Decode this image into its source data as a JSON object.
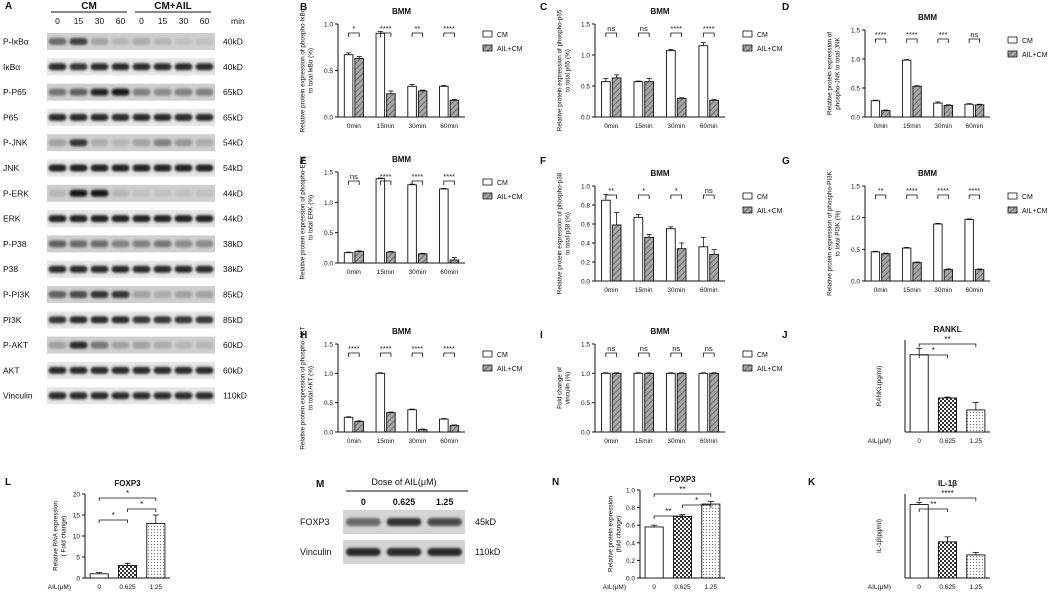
{
  "legend_labels": [
    "CM",
    "AIL+CM"
  ],
  "blotA": {
    "panel": "A",
    "groups": [
      "CM",
      "CM+AIL"
    ],
    "times": [
      "0",
      "15",
      "30",
      "60",
      "0",
      "15",
      "30",
      "60"
    ],
    "time_unit": "min",
    "rows": [
      {
        "label": "P-IκBα",
        "kd": "40kD",
        "phospho": true,
        "intensities": [
          0.55,
          0.75,
          0.3,
          0.2,
          0.25,
          0.2,
          0.15,
          0.15
        ]
      },
      {
        "label": "IκBα",
        "kd": "40kD",
        "phospho": false,
        "intensities": [
          0.85,
          0.8,
          0.85,
          0.85,
          0.85,
          0.85,
          0.85,
          0.85
        ]
      },
      {
        "label": "P-P65",
        "kd": "65kD",
        "phospho": true,
        "intensities": [
          0.5,
          0.6,
          0.9,
          0.95,
          0.45,
          0.4,
          0.45,
          0.45
        ]
      },
      {
        "label": "P65",
        "kd": "65kD",
        "phospho": false,
        "intensities": [
          0.85,
          0.85,
          0.85,
          0.85,
          0.85,
          0.85,
          0.85,
          0.85
        ]
      },
      {
        "label": "P-JNK",
        "kd": "54kD",
        "phospho": true,
        "intensities": [
          0.3,
          0.8,
          0.25,
          0.2,
          0.3,
          0.45,
          0.35,
          0.25
        ]
      },
      {
        "label": "JNK",
        "kd": "54kD",
        "phospho": false,
        "intensities": [
          0.9,
          0.9,
          0.9,
          0.9,
          0.9,
          0.9,
          0.9,
          0.9
        ]
      },
      {
        "label": "P-ERK",
        "kd": "44kD",
        "phospho": true,
        "intensities": [
          0.2,
          0.95,
          0.95,
          0.2,
          0.15,
          0.15,
          0.15,
          0.15
        ]
      },
      {
        "label": "ERK",
        "kd": "44kD",
        "phospho": false,
        "intensities": [
          0.9,
          0.9,
          0.9,
          0.9,
          0.9,
          0.9,
          0.9,
          0.9
        ]
      },
      {
        "label": "P-P38",
        "kd": "38kD",
        "phospho": true,
        "intensities": [
          0.6,
          0.55,
          0.55,
          0.45,
          0.45,
          0.5,
          0.4,
          0.4
        ]
      },
      {
        "label": "P38",
        "kd": "38kD",
        "phospho": false,
        "intensities": [
          0.85,
          0.85,
          0.85,
          0.85,
          0.85,
          0.85,
          0.85,
          0.85
        ]
      },
      {
        "label": "P-PI3K",
        "kd": "85kD",
        "phospho": true,
        "intensities": [
          0.6,
          0.7,
          0.8,
          0.8,
          0.3,
          0.25,
          0.3,
          0.3
        ]
      },
      {
        "label": "PI3K",
        "kd": "85kD",
        "phospho": false,
        "intensities": [
          0.8,
          0.85,
          0.85,
          0.85,
          0.8,
          0.8,
          0.8,
          0.8
        ]
      },
      {
        "label": "P-AKT",
        "kd": "60kD",
        "phospho": true,
        "intensities": [
          0.3,
          0.85,
          0.5,
          0.3,
          0.3,
          0.25,
          0.2,
          0.2
        ]
      },
      {
        "label": "AKT",
        "kd": "60kD",
        "phospho": false,
        "intensities": [
          0.85,
          0.85,
          0.85,
          0.85,
          0.85,
          0.85,
          0.85,
          0.85
        ]
      },
      {
        "label": "Vinculin",
        "kd": "110kD",
        "phospho": false,
        "intensities": [
          0.85,
          0.85,
          0.85,
          0.85,
          0.85,
          0.85,
          0.85,
          0.85
        ]
      }
    ]
  },
  "blotM": {
    "panel": "M",
    "title": "Dose of AIL(μM)",
    "doses": [
      "0",
      "0.625",
      "1.25"
    ],
    "rows": [
      {
        "label": "FOXP3",
        "kd": "45kD",
        "intensities": [
          0.55,
          0.8,
          0.7
        ]
      },
      {
        "label": "Vinculin",
        "kd": "110kD",
        "intensities": [
          0.85,
          0.85,
          0.85
        ]
      }
    ]
  },
  "chart_data": [
    {
      "id": "B",
      "panel": "B",
      "type": "bar",
      "title": "BMM",
      "ylabel": "Relative protein expression of phospho-IκBα to total IκBα (%)",
      "categories": [
        "0min",
        "15min",
        "30min",
        "60min"
      ],
      "ylim": [
        0,
        1.0
      ],
      "yticks": [
        "0.0",
        "0.5",
        "1.0"
      ],
      "series": [
        {
          "name": "CM",
          "values": [
            0.67,
            0.9,
            0.33,
            0.33
          ],
          "errors": [
            0.02,
            0.02,
            0.02,
            0.01
          ]
        },
        {
          "name": "AIL+CM",
          "values": [
            0.63,
            0.25,
            0.28,
            0.18
          ],
          "errors": [
            0.02,
            0.03,
            0.01,
            0.01
          ]
        }
      ],
      "significance": [
        "*",
        "****",
        "**",
        "****"
      ]
    },
    {
      "id": "C",
      "panel": "C",
      "type": "bar",
      "title": "BMM",
      "ylabel": "Relative protein expression of phospho-p65 to total p65 (%)",
      "categories": [
        "0min",
        "15min",
        "30min",
        "60min"
      ],
      "ylim": [
        0,
        1.5
      ],
      "yticks": [
        "0.0",
        "0.5",
        "1.0",
        "1.5"
      ],
      "series": [
        {
          "name": "CM",
          "values": [
            0.57,
            0.57,
            1.07,
            1.15
          ],
          "errors": [
            0.05,
            0.01,
            0.02,
            0.05
          ]
        },
        {
          "name": "AIL+CM",
          "values": [
            0.63,
            0.57,
            0.3,
            0.27
          ],
          "errors": [
            0.05,
            0.05,
            0.01,
            0.01
          ]
        }
      ],
      "significance": [
        "ns",
        "ns",
        "****",
        "****"
      ]
    },
    {
      "id": "D",
      "panel": "D",
      "type": "bar",
      "title": "BMM",
      "ylabel": "Relative protein expression of phospho-JNK to total JNK",
      "categories": [
        "0min",
        "15min",
        "30min",
        "60min"
      ],
      "ylim": [
        0,
        1.5
      ],
      "yticks": [
        "0.0",
        "0.5",
        "1.0",
        "1.5"
      ],
      "series": [
        {
          "name": "CM",
          "values": [
            0.28,
            0.98,
            0.24,
            0.22
          ],
          "errors": [
            0.01,
            0.01,
            0.02,
            0.01
          ]
        },
        {
          "name": "AIL+CM",
          "values": [
            0.11,
            0.53,
            0.2,
            0.21
          ],
          "errors": [
            0.01,
            0.01,
            0.01,
            0.01
          ]
        }
      ],
      "significance": [
        "****",
        "****",
        "***",
        "ns"
      ]
    },
    {
      "id": "E",
      "panel": "E",
      "type": "bar",
      "title": "BMM",
      "ylabel": "Relative protein expression of phospho-ERK to total ERK (%)",
      "categories": [
        "0min",
        "15min",
        "30min",
        "60min"
      ],
      "ylim": [
        0,
        1.5
      ],
      "yticks": [
        "0.0",
        "0.5",
        "1.0",
        "1.5"
      ],
      "series": [
        {
          "name": "CM",
          "values": [
            0.17,
            1.39,
            1.29,
            1.22
          ],
          "errors": [
            0.01,
            0.01,
            0.01,
            0.01
          ]
        },
        {
          "name": "AIL+CM",
          "values": [
            0.19,
            0.18,
            0.15,
            0.05
          ],
          "errors": [
            0.01,
            0.01,
            0.01,
            0.04
          ]
        }
      ],
      "significance": [
        "ns",
        "****",
        "****",
        "****"
      ]
    },
    {
      "id": "F",
      "panel": "F",
      "type": "bar",
      "title": "BMM",
      "ylabel": "Relative protein expression of phospho-p38 to total p38 (%)",
      "categories": [
        "0min",
        "15min",
        "30min",
        "60min"
      ],
      "ylim": [
        0,
        1.0
      ],
      "yticks": [
        "0.0",
        "0.2",
        "0.4",
        "0.6",
        "0.8",
        "1.0"
      ],
      "series": [
        {
          "name": "CM",
          "values": [
            0.85,
            0.67,
            0.55,
            0.36
          ],
          "errors": [
            0.06,
            0.03,
            0.02,
            0.1
          ]
        },
        {
          "name": "AIL+CM",
          "values": [
            0.59,
            0.46,
            0.34,
            0.28
          ],
          "errors": [
            0.13,
            0.03,
            0.06,
            0.05
          ]
        }
      ],
      "significance": [
        "**",
        "*",
        "*",
        "ns"
      ]
    },
    {
      "id": "G",
      "panel": "G",
      "type": "bar",
      "title": "BMM",
      "ylabel": "Relative protein expression of phospho-PI3K to total PI3K (%)",
      "categories": [
        "0min",
        "15min",
        "30min",
        "60min"
      ],
      "ylim": [
        0,
        1.5
      ],
      "yticks": [
        "0.0",
        "0.5",
        "1.0",
        "1.5"
      ],
      "series": [
        {
          "name": "CM",
          "values": [
            0.46,
            0.52,
            0.9,
            0.97
          ],
          "errors": [
            0.01,
            0.01,
            0.01,
            0.01
          ]
        },
        {
          "name": "AIL+CM",
          "values": [
            0.43,
            0.29,
            0.18,
            0.18
          ],
          "errors": [
            0.01,
            0.01,
            0.01,
            0.01
          ]
        }
      ],
      "significance": [
        "**",
        "****",
        "****",
        "****"
      ]
    },
    {
      "id": "H",
      "panel": "H",
      "type": "bar",
      "title": "BMM",
      "ylabel": "Relative protein expression of phospho-AKT to total AKT (%)",
      "categories": [
        "0min",
        "15min",
        "30min",
        "60min"
      ],
      "ylim": [
        0,
        1.5
      ],
      "yticks": [
        "0.0",
        "0.5",
        "1.0",
        "1.5"
      ],
      "series": [
        {
          "name": "CM",
          "values": [
            0.25,
            1.0,
            0.38,
            0.22
          ],
          "errors": [
            0.01,
            0.01,
            0.01,
            0.01
          ]
        },
        {
          "name": "AIL+CM",
          "values": [
            0.18,
            0.33,
            0.04,
            0.11
          ],
          "errors": [
            0.01,
            0.01,
            0.01,
            0.01
          ]
        }
      ],
      "significance": [
        "****",
        "****",
        "****",
        "****"
      ]
    },
    {
      "id": "I",
      "panel": "I",
      "type": "bar",
      "title": "BMM",
      "ylabel": "Fold change of vinculin (%)",
      "categories": [
        "0min",
        "15min",
        "30min",
        "60min"
      ],
      "ylim": [
        0,
        1.5
      ],
      "yticks": [
        "0.0",
        "0.5",
        "1.0",
        "1.5"
      ],
      "series": [
        {
          "name": "CM",
          "values": [
            1.0,
            1.0,
            1.0,
            1.0
          ],
          "errors": [
            0.01,
            0.01,
            0.01,
            0.01
          ]
        },
        {
          "name": "AIL+CM",
          "values": [
            1.0,
            1.0,
            1.0,
            1.0
          ],
          "errors": [
            0.01,
            0.01,
            0.01,
            0.01
          ]
        }
      ],
      "significance": [
        "ns",
        "ns",
        "ns",
        "ns"
      ]
    },
    {
      "id": "J",
      "panel": "J",
      "type": "bar",
      "title": "RANKL",
      "ylabel": "RANKL(pg/ml)",
      "xprefix": "AIL(μM)",
      "categories": [
        "0",
        "0.625",
        "1.25"
      ],
      "ylim": [
        0,
        2.0
      ],
      "yticks": [],
      "values": [
        1.68,
        0.74,
        0.48
      ],
      "errors": [
        0.14,
        0.02,
        0.16
      ],
      "patterns": [
        "plain",
        "check",
        "dots"
      ],
      "brackets": [
        {
          "from": 0,
          "to": 1,
          "label": "*"
        },
        {
          "from": 0,
          "to": 2,
          "label": "**"
        }
      ]
    },
    {
      "id": "L",
      "panel": "L",
      "type": "bar",
      "title": "FOXP3",
      "ylabel": "Relative RNA expression ( Fold change)",
      "xprefix": "AIL(μM)",
      "categories": [
        "0",
        "0.625",
        "1.25"
      ],
      "ylim": [
        0,
        20
      ],
      "yticks": [
        "0",
        "5",
        "10",
        "15",
        "20"
      ],
      "values": [
        1.0,
        3.0,
        13.0
      ],
      "errors": [
        0.3,
        0.5,
        2.0
      ],
      "patterns": [
        "plain",
        "check",
        "dots"
      ],
      "brackets": [
        {
          "from": 0,
          "to": 1,
          "label": "*"
        },
        {
          "from": 1,
          "to": 2,
          "label": "*"
        },
        {
          "from": 0,
          "to": 2,
          "label": "*"
        }
      ]
    },
    {
      "id": "N",
      "panel": "N",
      "type": "bar",
      "title": "FOXP3",
      "ylabel": "Relative protein expression (fold change)",
      "xprefix": "AIL(μM)",
      "categories": [
        "0",
        "0.625",
        "1.25"
      ],
      "ylim": [
        0,
        1.0
      ],
      "yticks": [
        "0.0",
        "0.2",
        "0.4",
        "0.6",
        "0.8",
        "1.0"
      ],
      "values": [
        0.58,
        0.7,
        0.84
      ],
      "errors": [
        0.02,
        0.02,
        0.03
      ],
      "patterns": [
        "plain",
        "check",
        "dots"
      ],
      "brackets": [
        {
          "from": 0,
          "to": 1,
          "label": "**"
        },
        {
          "from": 1,
          "to": 2,
          "label": "*"
        },
        {
          "from": 0,
          "to": 2,
          "label": "**"
        }
      ]
    },
    {
      "id": "K",
      "panel": "K",
      "type": "bar",
      "title": "IL-1β",
      "ylabel": "IL-1β(pg/ml)",
      "xprefix": "AIL(μM)",
      "categories": [
        "0",
        "0.625",
        "1.25"
      ],
      "ylim": [
        0,
        2.0
      ],
      "yticks": [],
      "values": [
        1.75,
        0.86,
        0.55
      ],
      "errors": [
        0.05,
        0.12,
        0.06
      ],
      "patterns": [
        "plain",
        "check",
        "dots"
      ],
      "brackets": [
        {
          "from": 0,
          "to": 1,
          "label": "**"
        },
        {
          "from": 0,
          "to": 2,
          "label": "****"
        }
      ]
    }
  ]
}
